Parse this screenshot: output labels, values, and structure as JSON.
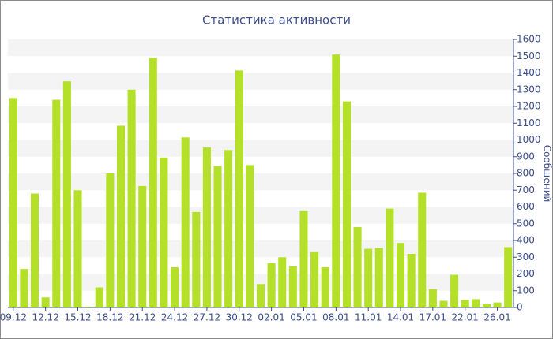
{
  "chart_data": {
    "type": "bar",
    "title": "Статистика активности",
    "y_axis_label": "Сообщений",
    "categories": [
      "09.12",
      null,
      null,
      "12.12",
      null,
      null,
      "15.12",
      null,
      null,
      "18.12",
      null,
      null,
      "21.12",
      null,
      null,
      "24.12",
      null,
      null,
      "27.12",
      null,
      null,
      "30.12",
      null,
      null,
      "02.01",
      null,
      null,
      "05.01",
      null,
      null,
      "08.01",
      null,
      null,
      "11.01",
      null,
      null,
      "14.01",
      null,
      null,
      "17.01",
      null,
      null,
      "22.01",
      null,
      null,
      "26.01",
      null
    ],
    "values": [
      1250,
      230,
      680,
      60,
      1240,
      1350,
      700,
      5,
      120,
      800,
      1085,
      1300,
      725,
      1490,
      895,
      240,
      1015,
      570,
      955,
      845,
      940,
      1415,
      850,
      140,
      265,
      300,
      245,
      575,
      330,
      240,
      1510,
      1230,
      480,
      350,
      355,
      590,
      385,
      320,
      685,
      110,
      40,
      195,
      45,
      50,
      20,
      30,
      360
    ],
    "color": "#b5e02a",
    "ylim": [
      0,
      1600
    ],
    "yticks": [
      0,
      100,
      200,
      300,
      400,
      500,
      600,
      700,
      800,
      900,
      1000,
      1100,
      1200,
      1300,
      1400,
      1500,
      1600
    ],
    "grid": true
  }
}
